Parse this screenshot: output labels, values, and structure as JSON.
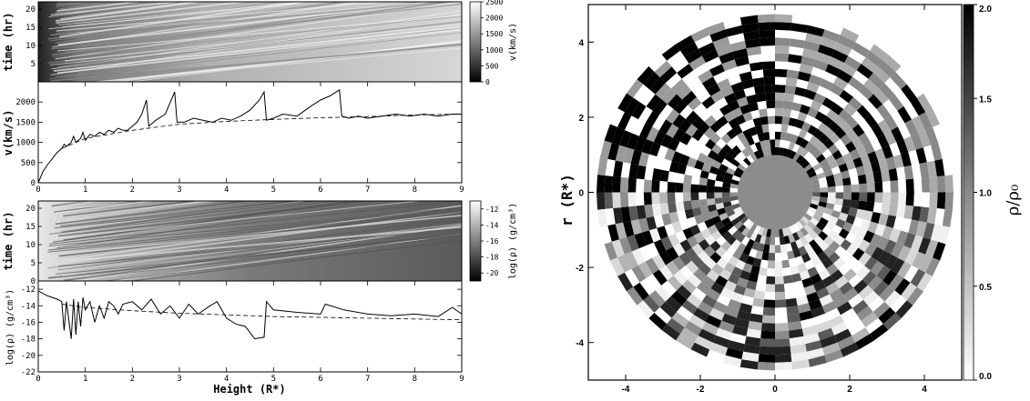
{
  "chart_data": [
    {
      "type": "heatmap",
      "panel": "velocity-time",
      "ylabel": "time (hr)",
      "yticks": [
        5,
        10,
        15,
        20
      ],
      "ylim": [
        0,
        22
      ],
      "xlim": [
        0,
        9
      ],
      "colorbar": {
        "label": "v(km/s)",
        "ticks": [
          0,
          500,
          1000,
          1500,
          2000,
          2500
        ],
        "range": [
          0,
          2500
        ]
      }
    },
    {
      "type": "line",
      "panel": "velocity-profile",
      "ylabel": "v(km/s)",
      "xlim": [
        0,
        9
      ],
      "ylim": [
        0,
        2500
      ],
      "yticks": [
        0,
        500,
        1000,
        1500,
        2000
      ],
      "xticks": [
        0,
        1,
        2,
        3,
        4,
        5,
        6,
        7,
        8,
        9
      ],
      "series": [
        {
          "style": "solid",
          "x": [
            0.0,
            0.1,
            0.2,
            0.3,
            0.4,
            0.5,
            0.55,
            0.6,
            0.7,
            0.75,
            0.8,
            0.9,
            0.95,
            1.0,
            1.1,
            1.2,
            1.3,
            1.4,
            1.5,
            1.6,
            1.7,
            1.8,
            1.9,
            2.0,
            2.1,
            2.2,
            2.3,
            2.35,
            2.5,
            2.7,
            2.9,
            2.95,
            3.1,
            3.3,
            3.5,
            3.7,
            3.9,
            4.1,
            4.3,
            4.5,
            4.7,
            4.8,
            4.85,
            5.0,
            5.2,
            5.5,
            5.8,
            6.0,
            6.2,
            6.4,
            6.45,
            6.6,
            6.8,
            7.0,
            7.3,
            7.6,
            7.9,
            8.2,
            8.5,
            8.8,
            9.0
          ],
          "y": [
            0,
            280,
            450,
            600,
            750,
            850,
            950,
            900,
            1000,
            1150,
            1000,
            1100,
            1250,
            1050,
            1200,
            1150,
            1250,
            1200,
            1300,
            1250,
            1350,
            1300,
            1300,
            1400,
            1500,
            1700,
            2050,
            1400,
            1550,
            1700,
            2250,
            1500,
            1500,
            1600,
            1550,
            1500,
            1600,
            1550,
            1650,
            1800,
            2050,
            2250,
            1550,
            1600,
            1700,
            1650,
            1900,
            2050,
            2150,
            2300,
            1650,
            1600,
            1650,
            1600,
            1650,
            1700,
            1650,
            1700,
            1650,
            1700,
            1700
          ]
        },
        {
          "style": "dashed",
          "x": [
            0.5,
            1,
            2,
            3,
            4,
            5,
            6,
            7,
            8,
            9
          ],
          "y": [
            850,
            1100,
            1300,
            1450,
            1520,
            1570,
            1610,
            1640,
            1680,
            1700
          ]
        }
      ]
    },
    {
      "type": "heatmap",
      "panel": "density-time",
      "ylabel": "time (hr)",
      "yticks": [
        0,
        5,
        10,
        15,
        20
      ],
      "ylim": [
        0,
        22
      ],
      "xlim": [
        0,
        9
      ],
      "colorbar": {
        "label": "log(ρ) (g/cm³)",
        "ticks": [
          -12,
          -14,
          -16,
          -18,
          -20
        ],
        "range": [
          -21,
          -11
        ]
      }
    },
    {
      "type": "line",
      "panel": "density-profile",
      "ylabel": "log(ρ) (g/cm³)",
      "xlabel": "Height (R*)",
      "xlim": [
        0,
        9
      ],
      "ylim": [
        -22,
        -11
      ],
      "yticks": [
        -12,
        -14,
        -16,
        -18,
        -20,
        -22
      ],
      "xticks": [
        0,
        1,
        2,
        3,
        4,
        5,
        6,
        7,
        8,
        9
      ],
      "series": [
        {
          "style": "solid",
          "x": [
            0.0,
            0.2,
            0.4,
            0.5,
            0.55,
            0.6,
            0.7,
            0.75,
            0.8,
            0.85,
            0.9,
            0.95,
            1.0,
            1.1,
            1.2,
            1.3,
            1.4,
            1.5,
            1.6,
            1.7,
            1.8,
            2.0,
            2.2,
            2.4,
            2.6,
            2.8,
            3.0,
            3.2,
            3.4,
            3.6,
            3.8,
            4.0,
            4.2,
            4.4,
            4.6,
            4.8,
            4.85,
            5.0,
            5.5,
            6.0,
            6.1,
            6.5,
            7.0,
            7.5,
            8.0,
            8.5,
            8.8,
            9.0
          ],
          "y": [
            -12.2,
            -12.8,
            -13.2,
            -13.5,
            -17,
            -13.5,
            -18,
            -13.2,
            -17.5,
            -13.5,
            -16.5,
            -13,
            -14.5,
            -13.5,
            -16,
            -14,
            -15.5,
            -13.5,
            -14,
            -15,
            -13.8,
            -13.5,
            -14.5,
            -13.2,
            -15,
            -14,
            -15.5,
            -13.8,
            -15,
            -14.2,
            -13.5,
            -15.5,
            -16.2,
            -16.5,
            -18,
            -17.8,
            -13.5,
            -14.5,
            -14.8,
            -15,
            -13.8,
            -14.5,
            -15,
            -15.2,
            -15,
            -15.3,
            -14.2,
            -15
          ]
        },
        {
          "style": "dashed",
          "x": [
            0.5,
            1,
            2,
            3,
            4,
            5,
            6,
            7,
            8,
            9
          ],
          "y": [
            -13.8,
            -14.2,
            -14.6,
            -14.9,
            -15.1,
            -15.3,
            -15.4,
            -15.5,
            -15.6,
            -15.7
          ]
        }
      ]
    },
    {
      "type": "heatmap",
      "panel": "polar-density",
      "ylabel": "r (R*)",
      "xlim": [
        -5,
        5
      ],
      "ylim": [
        -5,
        5
      ],
      "xticks": [
        -4,
        -2,
        0,
        2,
        4
      ],
      "yticks": [
        4,
        2,
        0,
        -2,
        -4
      ],
      "colorbar": {
        "label": "ρ/ρ₀",
        "ticks": [
          0.0,
          0.5,
          1.0,
          1.5,
          2.0
        ],
        "range": [
          0,
          2
        ]
      }
    }
  ]
}
